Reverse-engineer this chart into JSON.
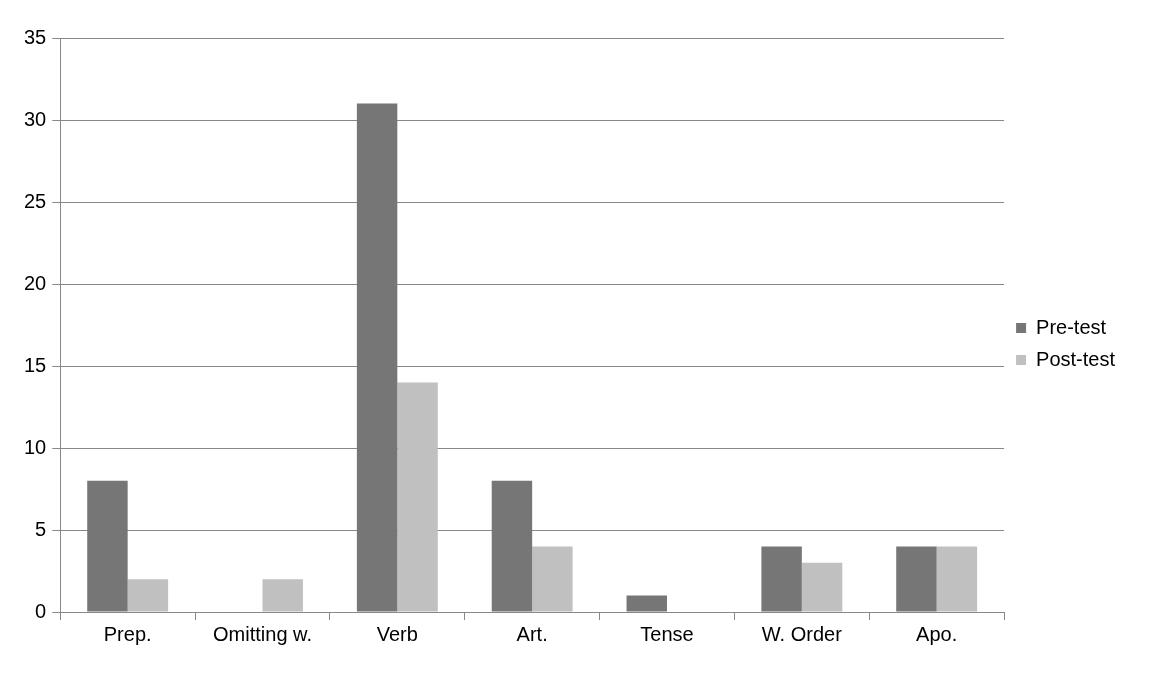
{
  "chart_data": {
    "type": "bar",
    "categories": [
      "Prep.",
      "Omitting w.",
      "Verb",
      "Art.",
      "Tense",
      "W. Order",
      "Apo."
    ],
    "series": [
      {
        "name": "Pre-test",
        "color": "#767676",
        "values": [
          8,
          0,
          31,
          8,
          1,
          4,
          4
        ]
      },
      {
        "name": "Post-test",
        "color": "#c0c0c0",
        "values": [
          2,
          2,
          14,
          4,
          0,
          3,
          4
        ]
      }
    ],
    "ylim": [
      0,
      35
    ],
    "yticks": [
      0,
      5,
      10,
      15,
      20,
      25,
      30,
      35
    ],
    "grid": "y",
    "legend": "right"
  }
}
